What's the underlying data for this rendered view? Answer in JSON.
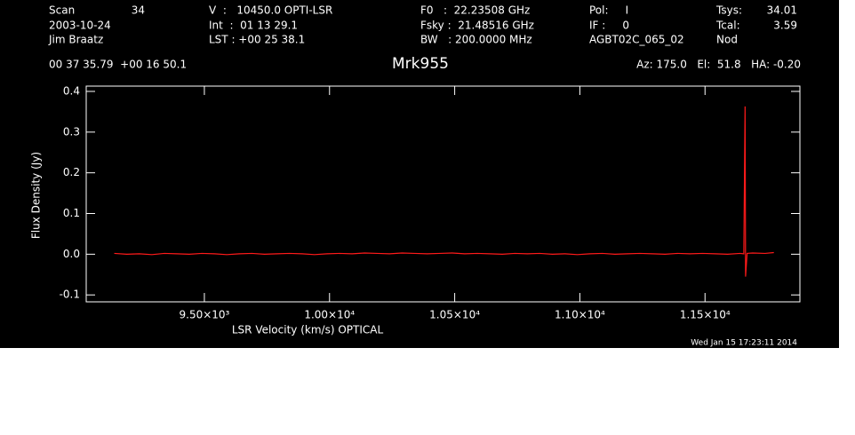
{
  "chart_data": {
    "type": "line",
    "title": "Mrk955",
    "info": [
      "Scan",
      "34",
      "2003-10-24",
      "Jim Braatz",
      "V  :   10450.0 OPTI-LSR",
      "Int  :  01 13 29.1",
      "LST : +00 25 38.1",
      "F0   :  22.23508 GHz",
      "Fsky :  21.48516 GHz",
      "BW   : 200.0000 MHz",
      "Pol:     I",
      "IF :     0",
      "AGBT02C_065_02",
      "Tsys:",
      "34.01",
      "Tcal:",
      "3.59",
      "Nod",
      "00 37 35.79  +00 16 50.1",
      "Az: 175.0   El:  51.8   HA: -0.20"
    ],
    "footer": "Wed Jan 15 17:23:11 2014",
    "xlabel": "LSR Velocity (km/s) OPTICAL",
    "ylabel": "Flux Density (Jy)",
    "xlim": [
      9028,
      11879
    ],
    "ylim": [
      -0.117,
      0.413
    ],
    "xticks": [
      {
        "value": 9500,
        "label": "9.50×10³"
      },
      {
        "value": 10000,
        "label": "1.00×10⁴"
      },
      {
        "value": 10500,
        "label": "1.05×10⁴"
      },
      {
        "value": 11000,
        "label": "1.10×10⁴"
      },
      {
        "value": 11500,
        "label": "1.15×10⁴"
      }
    ],
    "yticks": [
      -0.1,
      {
        "value": 0,
        "label": "0.0"
      },
      0.1,
      0.2,
      0.3,
      0.4
    ],
    "series": [
      {
        "name": "Mrk955",
        "color": "#ff1a1a",
        "x": [
          9140,
          9190,
          9240,
          9290,
          9340,
          9390,
          9440,
          9490,
          9540,
          9590,
          9640,
          9690,
          9740,
          9790,
          9840,
          9890,
          9940,
          9990,
          10040,
          10090,
          10140,
          10190,
          10240,
          10290,
          10340,
          10390,
          10440,
          10490,
          10540,
          10590,
          10640,
          10690,
          10740,
          10790,
          10840,
          10890,
          10940,
          10990,
          11040,
          11090,
          11140,
          11190,
          11240,
          11290,
          11340,
          11390,
          11440,
          11490,
          11540,
          11590,
          11640,
          11655,
          11660,
          11662,
          11668,
          11690,
          11740,
          11775
        ],
        "values": [
          0.002,
          0.0,
          0.001,
          -0.001,
          0.002,
          0.001,
          0.0,
          0.002,
          0.001,
          -0.001,
          0.001,
          0.002,
          0.0,
          0.001,
          0.002,
          0.001,
          -0.001,
          0.001,
          0.002,
          0.001,
          0.003,
          0.002,
          0.001,
          0.003,
          0.002,
          0.001,
          0.002,
          0.003,
          0.001,
          0.002,
          0.001,
          0.0,
          0.002,
          0.001,
          0.002,
          0.0,
          0.001,
          -0.001,
          0.001,
          0.002,
          0.0,
          0.001,
          0.002,
          0.001,
          0.0,
          0.002,
          0.001,
          0.002,
          0.001,
          0.0,
          0.002,
          0.001,
          0.363,
          -0.055,
          0.002,
          0.003,
          0.002,
          0.004
        ]
      }
    ]
  }
}
